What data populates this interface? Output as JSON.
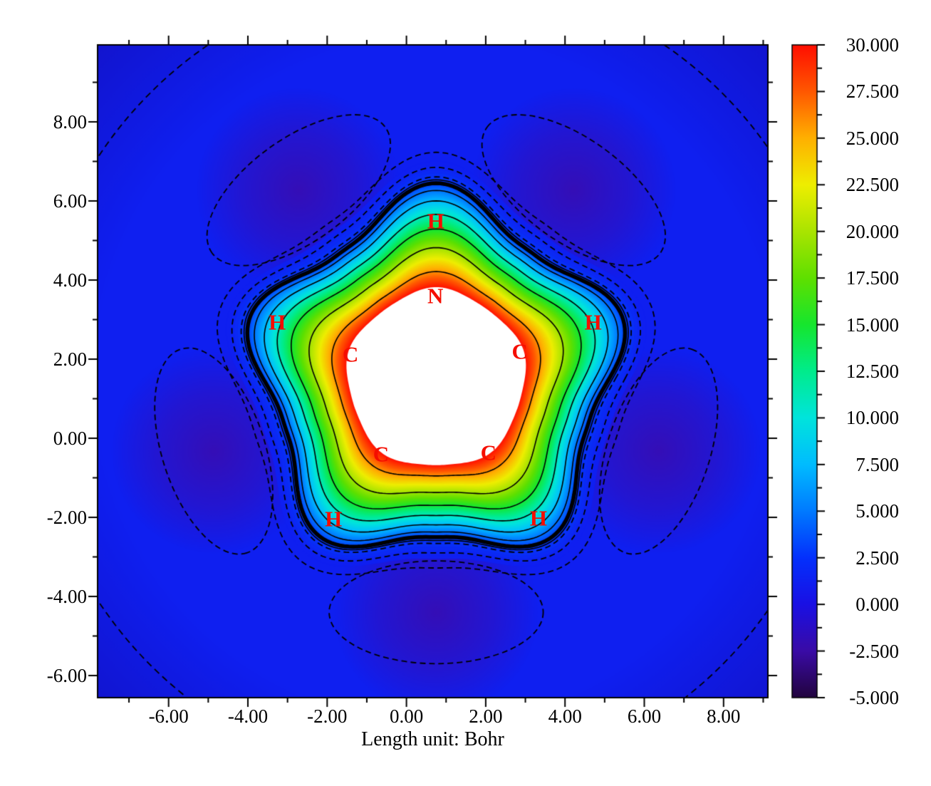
{
  "figure": {
    "background": "#ffffff"
  },
  "chart_data": {
    "type": "heatmap",
    "subtype": "filled-contour-map",
    "description": "Electrostatic-potential-like contour map of a pyrrole ring (1 N, 4 C, 5 H) with filled color shading, solid positive contour lines, dashed negative contour lines and a white out-of-range core",
    "title": "",
    "xlabel": "Length unit: Bohr",
    "x_range": [
      -7.78,
      9.11
    ],
    "y_range": [
      -6.56,
      9.95
    ],
    "grid": false,
    "x_ticks": {
      "major_values": [
        -6,
        -4,
        -2,
        0,
        2,
        4,
        6,
        8
      ],
      "major_labels": [
        "-6.00",
        "-4.00",
        "-2.00",
        "0.00",
        "2.00",
        "4.00",
        "6.00",
        "8.00"
      ],
      "minor_values": [
        -7,
        -5,
        -3,
        -1,
        1,
        3,
        5,
        7,
        9
      ]
    },
    "y_ticks": {
      "major_values": [
        8,
        6,
        4,
        2,
        0,
        -2,
        -4,
        -6
      ],
      "major_labels": [
        "8.00",
        "6.00",
        "4.00",
        "2.00",
        "0.00",
        "-2.00",
        "-4.00",
        "-6.00"
      ],
      "minor_values": [
        9,
        7,
        5,
        3,
        1,
        -1,
        -3,
        -5
      ]
    },
    "colorbar": {
      "min": -5,
      "max": 30,
      "major_tick_values": [
        30,
        27.5,
        25,
        22.5,
        20,
        17.5,
        15,
        12.5,
        10,
        7.5,
        5,
        2.5,
        0,
        -2.5,
        -5
      ],
      "major_tick_labels": [
        "30.000",
        "27.500",
        "25.000",
        "22.500",
        "20.000",
        "17.500",
        "15.000",
        "12.500",
        "10.000",
        "7.500",
        "5.000",
        "2.500",
        "0.000",
        "-2.500",
        "-5.000"
      ],
      "colormap_stops": [
        [
          -5.0,
          "#22043E"
        ],
        [
          -2.5,
          "#3A0BA6"
        ],
        [
          0.0,
          "#1A10E4"
        ],
        [
          2.5,
          "#0430FC"
        ],
        [
          5.0,
          "#007AFF"
        ],
        [
          7.5,
          "#00BCFF"
        ],
        [
          10.0,
          "#00E4DC"
        ],
        [
          12.5,
          "#00EC8C"
        ],
        [
          15.0,
          "#16E62E"
        ],
        [
          17.5,
          "#5FE000"
        ],
        [
          20.0,
          "#AAE400"
        ],
        [
          22.5,
          "#EEEE00"
        ],
        [
          25.0,
          "#FFB000"
        ],
        [
          27.5,
          "#FF5800"
        ],
        [
          30.0,
          "#FF0E00"
        ]
      ],
      "over_range_color": "#FFFFFF"
    },
    "atom_labels": [
      {
        "text": "H",
        "x": 0.74,
        "y": 5.5
      },
      {
        "text": "N",
        "x": 0.73,
        "y": 3.6
      },
      {
        "text": "H",
        "x": -3.26,
        "y": 2.94
      },
      {
        "text": "H",
        "x": 4.71,
        "y": 2.94
      },
      {
        "text": "C",
        "x": -1.41,
        "y": 2.13
      },
      {
        "text": "C",
        "x": 2.86,
        "y": 2.2
      },
      {
        "text": "C",
        "x": -0.64,
        "y": -0.4
      },
      {
        "text": "C",
        "x": 2.07,
        "y": -0.36
      },
      {
        "text": "H",
        "x": -1.84,
        "y": -2.04
      },
      {
        "text": "H",
        "x": 3.33,
        "y": -2.02
      }
    ],
    "annotation_color": "#F50D00",
    "field": {
      "center": [
        0.75,
        1.5
      ],
      "bump_angles_deg": [
        90,
        162,
        234,
        306,
        18
      ],
      "bump_sharpness": 1.4,
      "outer_base_radius": 4.0,
      "outer_bump_amp": 0.95,
      "inner_base_radius": 2.18,
      "inner_bump_amp": 0.14,
      "band_value": 3,
      "core_value": 30,
      "background_value": 1.2,
      "solid_contour_t": [
        0.07,
        0.17,
        0.3,
        0.44,
        0.62,
        0.85
      ],
      "dashed_hug_offsets": [
        0.16,
        0.4,
        0.78
      ],
      "negative_blob_ring_radius": 5.9,
      "negative_blob_gradient_radius": 2.25,
      "negative_blob_ellipse_axes": [
        2.7,
        1.3
      ],
      "dashed_circle_radius": 10.2
    }
  }
}
